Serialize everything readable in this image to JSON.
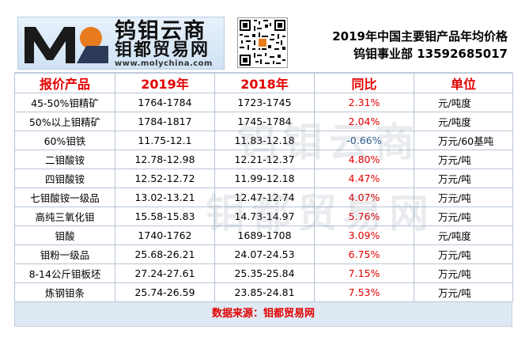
{
  "header": {
    "brand_line1": "钨钼云商",
    "brand_line2": "钼都贸易网",
    "url": "www.molychina.com",
    "title": "2019年中国主要钼产品年均价格",
    "subtitle": "钨钼事业部  13592685017"
  },
  "table": {
    "columns": [
      "报价产品",
      "2019年",
      "2018年",
      "同比",
      "单位"
    ],
    "rows": [
      {
        "product": "45-50%钼精矿",
        "y2019": "1764-1784",
        "y2018": "1723-1745",
        "yoy": "2.31%",
        "unit": "元/吨度"
      },
      {
        "product": "50%以上钼精矿",
        "y2019": "1784-1817",
        "y2018": "1745-1784",
        "yoy": "2.04%",
        "unit": "元/吨度"
      },
      {
        "product": "60%钼铁",
        "y2019": "11.75-12.1",
        "y2018": "11.83-12.18",
        "yoy": "-0.66%",
        "unit": "万元/60基吨"
      },
      {
        "product": "二钼酸铵",
        "y2019": "12.78-12.98",
        "y2018": "12.21-12.37",
        "yoy": "4.80%",
        "unit": "万元/吨"
      },
      {
        "product": "四钼酸铵",
        "y2019": "12.52-12.72",
        "y2018": "11.99-12.18",
        "yoy": "4.47%",
        "unit": "万元/吨"
      },
      {
        "product": "七钼酸铵一级品",
        "y2019": "13.02-13.21",
        "y2018": "12.47-12.74",
        "yoy": "4.07%",
        "unit": "万元/吨"
      },
      {
        "product": "高纯三氧化钼",
        "y2019": "15.58-15.83",
        "y2018": "14.73-14.97",
        "yoy": "5.76%",
        "unit": "万元/吨"
      },
      {
        "product": "钼酸",
        "y2019": "1740-1762",
        "y2018": "1689-1708",
        "yoy": "3.09%",
        "unit": "元/吨度"
      },
      {
        "product": "钼粉一级品",
        "y2019": "25.68-26.21",
        "y2018": "24.07-24.53",
        "yoy": "6.75%",
        "unit": "万元/吨"
      },
      {
        "product": "8-14公斤钼板坯",
        "y2019": "27.24-27.61",
        "y2018": "25.35-25.84",
        "yoy": "7.15%",
        "unit": "万元/吨"
      },
      {
        "product": "炼钢钼条",
        "y2019": "25.74-26.59",
        "y2018": "23.85-24.81",
        "yoy": "7.53%",
        "unit": "万元/吨"
      }
    ]
  },
  "source": "数据来源：钼都贸易网",
  "watermark": {
    "line1": "钨钼云商",
    "line2": "钼都贸易网"
  },
  "colors": {
    "accent_red": "#e30000",
    "negative_blue": "#2f5f8f",
    "frame_blue": "#dfe9f3"
  }
}
